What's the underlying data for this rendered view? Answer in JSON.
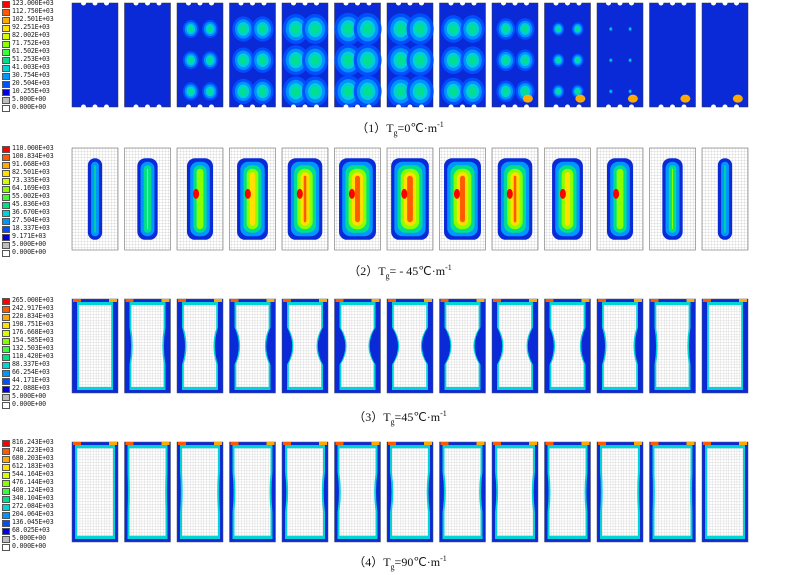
{
  "rows": [
    {
      "caption": {
        "prefix": "（1）T",
        "sub": "g",
        "mid": "=0℃·m",
        "sup": "-1"
      },
      "legend": [
        "123.000E+03",
        "112.750E+03",
        "102.501E+03",
        "92.251E+03",
        "82.002E+03",
        "71.752E+03",
        "61.502E+03",
        "51.253E+03",
        "41.003E+03",
        "30.754E+03",
        "20.504E+03",
        "10.255E+03",
        "5.000E+00",
        "0.000E+00"
      ],
      "mode": "uniform",
      "panel_count": 13
    },
    {
      "caption": {
        "prefix": "（2）T",
        "sub": "g",
        "mid": "= - 45℃·m",
        "sup": "-1"
      },
      "legend": [
        "110.000E+03",
        "100.834E+03",
        "91.668E+03",
        "82.501E+03",
        "73.335E+03",
        "64.169E+03",
        "55.002E+03",
        "45.836E+03",
        "36.670E+03",
        "27.504E+03",
        "18.337E+03",
        "9.171E+03",
        "5.000E+00",
        "0.000E+00"
      ],
      "mode": "center",
      "panel_count": 13
    },
    {
      "caption": {
        "prefix": "（3）T",
        "sub": "g",
        "mid": "=45℃·m",
        "sup": "-1"
      },
      "legend": [
        "265.000E+03",
        "242.917E+03",
        "220.834E+03",
        "198.751E+03",
        "176.668E+03",
        "154.585E+03",
        "132.503E+03",
        "110.420E+03",
        "88.337E+03",
        "66.254E+03",
        "44.171E+03",
        "22.088E+03",
        "5.000E+00",
        "0.000E+00"
      ],
      "mode": "edge",
      "panel_count": 13
    },
    {
      "caption": {
        "prefix": "（4）T",
        "sub": "g",
        "mid": "=90℃·m",
        "sup": "-1"
      },
      "legend": [
        "816.243E+03",
        "748.223E+03",
        "680.203E+03",
        "612.183E+03",
        "544.164E+03",
        "476.144E+03",
        "408.124E+03",
        "340.104E+03",
        "272.084E+03",
        "204.064E+03",
        "136.045E+03",
        "68.025E+03",
        "5.000E+00",
        "0.000E+00"
      ],
      "mode": "edge-thin",
      "panel_count": 13
    }
  ],
  "colors": {
    "scale": [
      "#ff0000",
      "#ff5a00",
      "#ffaa00",
      "#ffe000",
      "#d4ff00",
      "#8aff00",
      "#3cff3c",
      "#00e08a",
      "#00d4d4",
      "#0096ff",
      "#0050ff",
      "#0000e0",
      "#bebebe",
      "#ffffff"
    ],
    "background_blue": "#0a2ad8",
    "mesh_grid": "#9a9a9a"
  }
}
